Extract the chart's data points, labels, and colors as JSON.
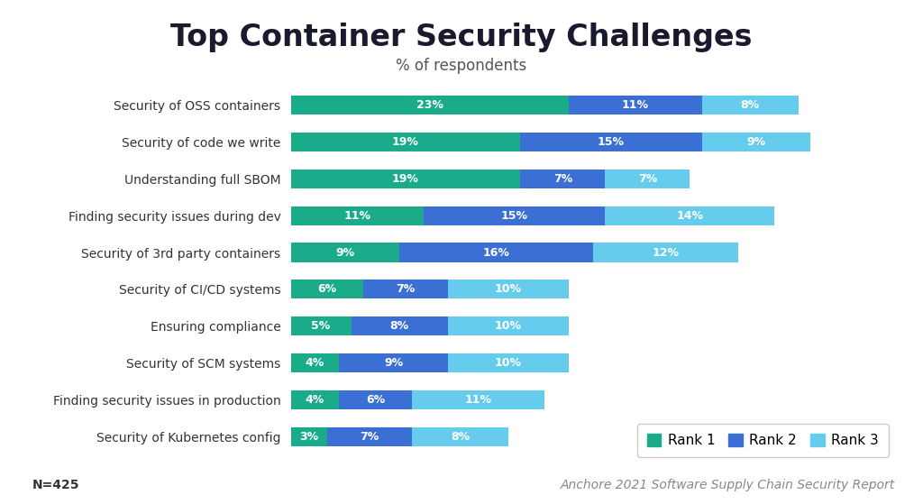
{
  "title": "Top Container Security Challenges",
  "subtitle": "% of respondents",
  "footnote_left": "N=425",
  "footnote_right": "Anchore 2021 Software Supply Chain Security Report",
  "categories": [
    "Security of OSS containers",
    "Security of code we write",
    "Understanding full SBOM",
    "Finding security issues during dev",
    "Security of 3rd party containers",
    "Security of CI/CD systems",
    "Ensuring compliance",
    "Security of SCM systems",
    "Finding security issues in production",
    "Security of Kubernetes config"
  ],
  "rank1": [
    23,
    19,
    19,
    11,
    9,
    6,
    5,
    4,
    4,
    3
  ],
  "rank2": [
    11,
    15,
    7,
    15,
    16,
    7,
    8,
    9,
    6,
    7
  ],
  "rank3": [
    8,
    9,
    7,
    14,
    12,
    10,
    10,
    10,
    11,
    8
  ],
  "color_rank1": "#1aab8a",
  "color_rank2": "#3b6fd4",
  "color_rank3": "#66ccee",
  "background_color": "#ffffff",
  "title_fontsize": 24,
  "subtitle_fontsize": 12,
  "label_fontsize": 10,
  "bar_label_fontsize": 9,
  "legend_fontsize": 11,
  "footnote_fontsize": 10,
  "xlim": 50
}
